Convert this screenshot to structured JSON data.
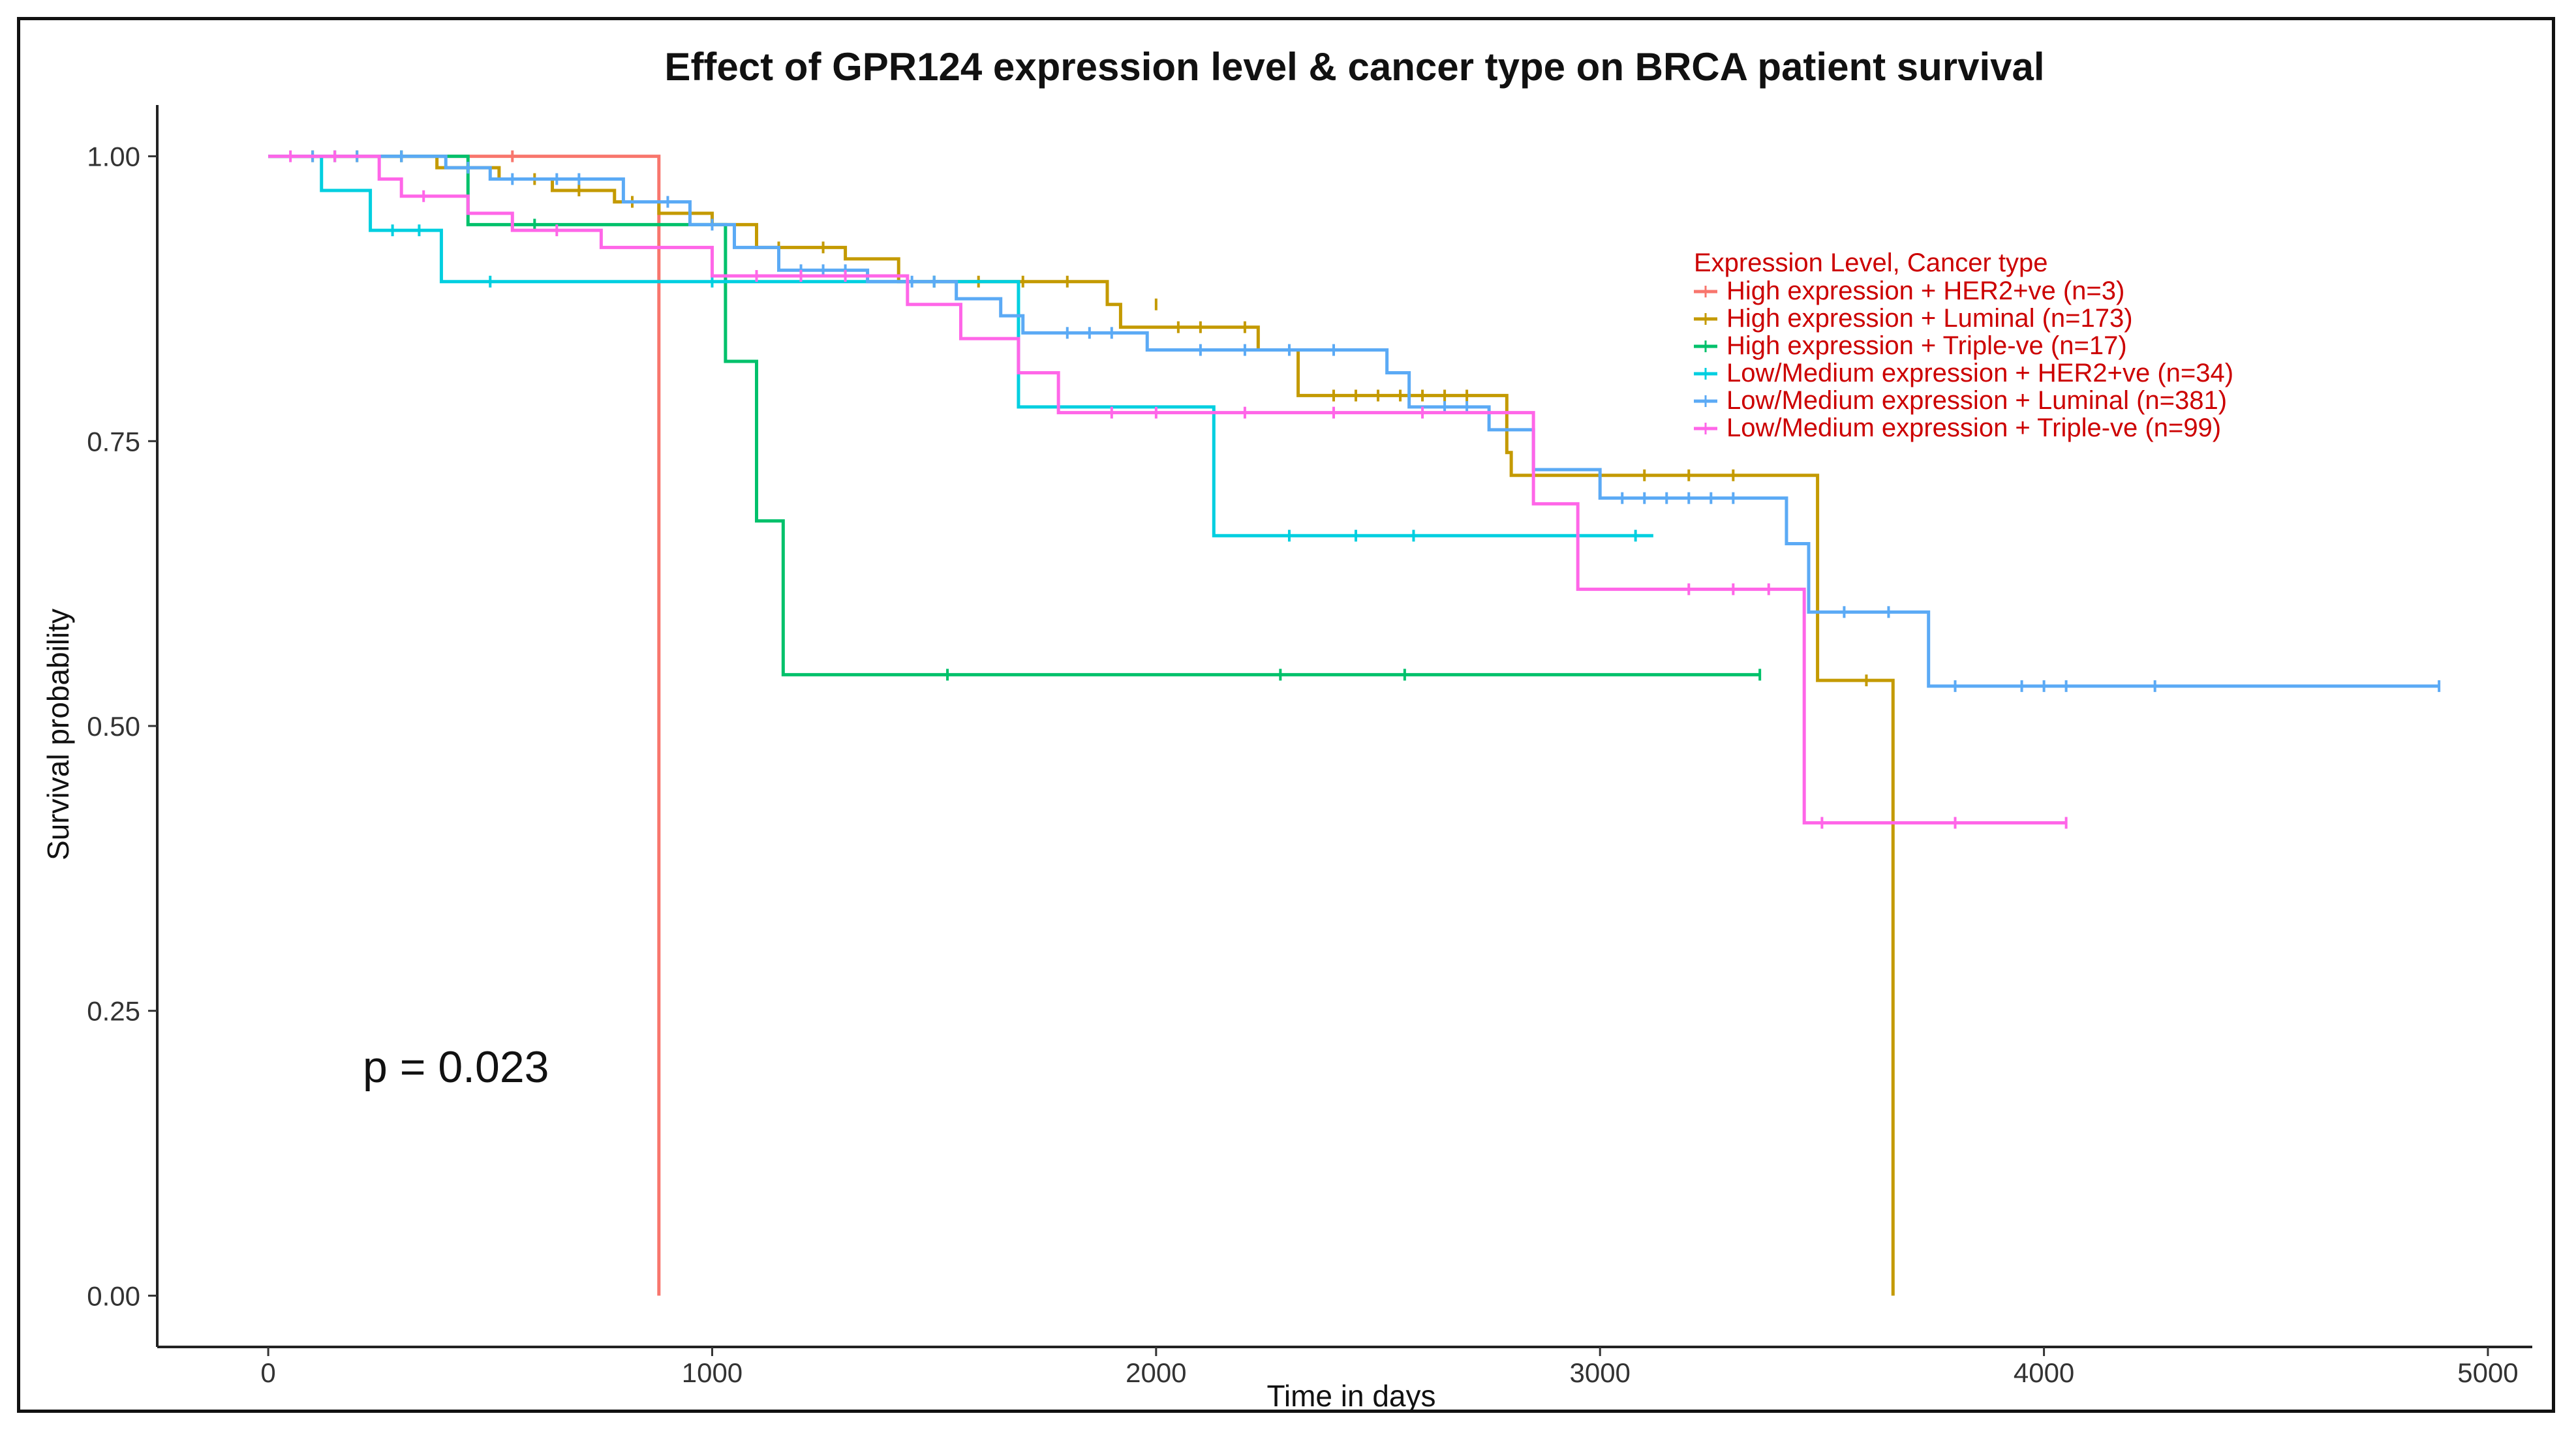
{
  "chart_data": {
    "type": "line",
    "title": "Effect of GPR124 expression level & cancer type on BRCA patient survival",
    "xlabel": "Time in days",
    "ylabel": "Survival probability",
    "xlim": [
      -250,
      5100
    ],
    "ylim": [
      -0.045,
      1.045
    ],
    "x_ticks": [
      0,
      1000,
      2000,
      3000,
      4000,
      5000
    ],
    "x_tick_labels": [
      "0",
      "1000",
      "2000",
      "3000",
      "4000",
      "5000"
    ],
    "y_ticks": [
      0,
      0.25,
      0.5,
      0.75,
      1.0
    ],
    "y_tick_labels": [
      "0.00",
      "0.25",
      "0.50",
      "0.75",
      "1.00"
    ],
    "legend_title": "Expression Level, Cancer type",
    "legend_title_color": "#cc0000",
    "legend_text_color": "#cc0000",
    "legend_position": "top-right",
    "annotation": "p = 0.023",
    "series": [
      {
        "name": "High expression + HER2+ve (n=3)",
        "color": "#F8766D",
        "steps": [
          [
            0,
            1.0
          ],
          [
            880,
            0.0
          ]
        ],
        "censor": [
          [
            300,
            1.0
          ],
          [
            550,
            1.0
          ]
        ]
      },
      {
        "name": "High expression + Luminal (n=173)",
        "color": "#C49A00",
        "steps": [
          [
            0,
            1.0
          ],
          [
            380,
            0.99
          ],
          [
            520,
            0.98
          ],
          [
            640,
            0.97
          ],
          [
            780,
            0.96
          ],
          [
            880,
            0.95
          ],
          [
            1000,
            0.94
          ],
          [
            1100,
            0.92
          ],
          [
            1300,
            0.91
          ],
          [
            1420,
            0.89
          ],
          [
            1890,
            0.87
          ],
          [
            1920,
            0.85
          ],
          [
            2230,
            0.83
          ],
          [
            2320,
            0.79
          ],
          [
            2790,
            0.74
          ],
          [
            2800,
            0.72
          ],
          [
            3490,
            0.54
          ],
          [
            3660,
            0.0
          ]
        ],
        "censor": [
          [
            100,
            1.0
          ],
          [
            200,
            1.0
          ],
          [
            450,
            0.99
          ],
          [
            600,
            0.98
          ],
          [
            700,
            0.97
          ],
          [
            820,
            0.96
          ],
          [
            950,
            0.95
          ],
          [
            1150,
            0.92
          ],
          [
            1250,
            0.92
          ],
          [
            1500,
            0.89
          ],
          [
            1600,
            0.89
          ],
          [
            1700,
            0.89
          ],
          [
            1800,
            0.89
          ],
          [
            2000,
            0.87
          ],
          [
            2050,
            0.85
          ],
          [
            2100,
            0.85
          ],
          [
            2200,
            0.85
          ],
          [
            2400,
            0.79
          ],
          [
            2450,
            0.79
          ],
          [
            2500,
            0.79
          ],
          [
            2550,
            0.79
          ],
          [
            2600,
            0.79
          ],
          [
            2650,
            0.79
          ],
          [
            2700,
            0.79
          ],
          [
            3100,
            0.72
          ],
          [
            3200,
            0.72
          ],
          [
            3300,
            0.72
          ],
          [
            3600,
            0.54
          ]
        ],
        "end": 3660
      },
      {
        "name": "High expression + Triple-ve (n=17)",
        "color": "#00C16B",
        "steps": [
          [
            0,
            1.0
          ],
          [
            450,
            0.94
          ],
          [
            1030,
            0.82
          ],
          [
            1100,
            0.68
          ],
          [
            1160,
            0.545
          ]
        ],
        "censor": [
          [
            150,
            1.0
          ],
          [
            300,
            1.0
          ],
          [
            600,
            0.94
          ],
          [
            1530,
            0.545
          ],
          [
            2280,
            0.545
          ],
          [
            2560,
            0.545
          ],
          [
            3360,
            0.545
          ]
        ],
        "end": 3360
      },
      {
        "name": "Low/Medium expression + HER2+ve (n=34)",
        "color": "#00CFE0",
        "steps": [
          [
            0,
            1.0
          ],
          [
            120,
            0.97
          ],
          [
            230,
            0.935
          ],
          [
            390,
            0.89
          ],
          [
            1690,
            0.78
          ],
          [
            2130,
            0.667
          ]
        ],
        "censor": [
          [
            280,
            0.935
          ],
          [
            340,
            0.935
          ],
          [
            500,
            0.89
          ],
          [
            1000,
            0.89
          ],
          [
            1500,
            0.89
          ],
          [
            2300,
            0.667
          ],
          [
            2450,
            0.667
          ],
          [
            2580,
            0.667
          ],
          [
            2950,
            0.667
          ],
          [
            3080,
            0.667
          ]
        ],
        "end": 3120
      },
      {
        "name": "Low/Medium expression + Luminal (n=381)",
        "color": "#5BAAF5",
        "steps": [
          [
            0,
            1.0
          ],
          [
            400,
            0.99
          ],
          [
            500,
            0.98
          ],
          [
            800,
            0.96
          ],
          [
            950,
            0.94
          ],
          [
            1050,
            0.92
          ],
          [
            1150,
            0.9
          ],
          [
            1350,
            0.89
          ],
          [
            1550,
            0.875
          ],
          [
            1650,
            0.86
          ],
          [
            1700,
            0.845
          ],
          [
            1980,
            0.83
          ],
          [
            2520,
            0.81
          ],
          [
            2570,
            0.78
          ],
          [
            2750,
            0.76
          ],
          [
            2850,
            0.725
          ],
          [
            3000,
            0.7
          ],
          [
            3420,
            0.66
          ],
          [
            3470,
            0.6
          ],
          [
            3740,
            0.535
          ]
        ],
        "censor": [
          [
            100,
            1.0
          ],
          [
            200,
            1.0
          ],
          [
            300,
            1.0
          ],
          [
            450,
            0.99
          ],
          [
            550,
            0.98
          ],
          [
            650,
            0.98
          ],
          [
            700,
            0.98
          ],
          [
            900,
            0.96
          ],
          [
            1000,
            0.94
          ],
          [
            1200,
            0.9
          ],
          [
            1250,
            0.9
          ],
          [
            1300,
            0.9
          ],
          [
            1450,
            0.89
          ],
          [
            1500,
            0.89
          ],
          [
            1800,
            0.845
          ],
          [
            1850,
            0.845
          ],
          [
            1900,
            0.845
          ],
          [
            2100,
            0.83
          ],
          [
            2200,
            0.83
          ],
          [
            2300,
            0.83
          ],
          [
            2400,
            0.83
          ],
          [
            2650,
            0.78
          ],
          [
            2700,
            0.78
          ],
          [
            3050,
            0.7
          ],
          [
            3100,
            0.7
          ],
          [
            3150,
            0.7
          ],
          [
            3200,
            0.7
          ],
          [
            3250,
            0.7
          ],
          [
            3300,
            0.7
          ],
          [
            3550,
            0.6
          ],
          [
            3650,
            0.6
          ],
          [
            3800,
            0.535
          ],
          [
            3950,
            0.535
          ],
          [
            4000,
            0.535
          ],
          [
            4050,
            0.535
          ],
          [
            4250,
            0.535
          ],
          [
            4890,
            0.535
          ]
        ],
        "end": 4890
      },
      {
        "name": "Low/Medium expression + Triple-ve (n=99)",
        "color": "#FF66E8",
        "steps": [
          [
            0,
            1.0
          ],
          [
            250,
            0.98
          ],
          [
            300,
            0.965
          ],
          [
            450,
            0.95
          ],
          [
            550,
            0.935
          ],
          [
            750,
            0.92
          ],
          [
            1000,
            0.895
          ],
          [
            1440,
            0.87
          ],
          [
            1560,
            0.84
          ],
          [
            1690,
            0.81
          ],
          [
            1780,
            0.775
          ],
          [
            2850,
            0.695
          ],
          [
            2950,
            0.62
          ],
          [
            3460,
            0.415
          ]
        ],
        "censor": [
          [
            50,
            1.0
          ],
          [
            150,
            1.0
          ],
          [
            350,
            0.965
          ],
          [
            650,
            0.935
          ],
          [
            1100,
            0.895
          ],
          [
            1200,
            0.895
          ],
          [
            1300,
            0.895
          ],
          [
            1900,
            0.775
          ],
          [
            2000,
            0.775
          ],
          [
            2200,
            0.775
          ],
          [
            2400,
            0.775
          ],
          [
            2600,
            0.775
          ],
          [
            3200,
            0.62
          ],
          [
            3300,
            0.62
          ],
          [
            3380,
            0.62
          ],
          [
            3500,
            0.415
          ],
          [
            3800,
            0.415
          ],
          [
            4050,
            0.415
          ]
        ],
        "end": 4050
      }
    ]
  }
}
